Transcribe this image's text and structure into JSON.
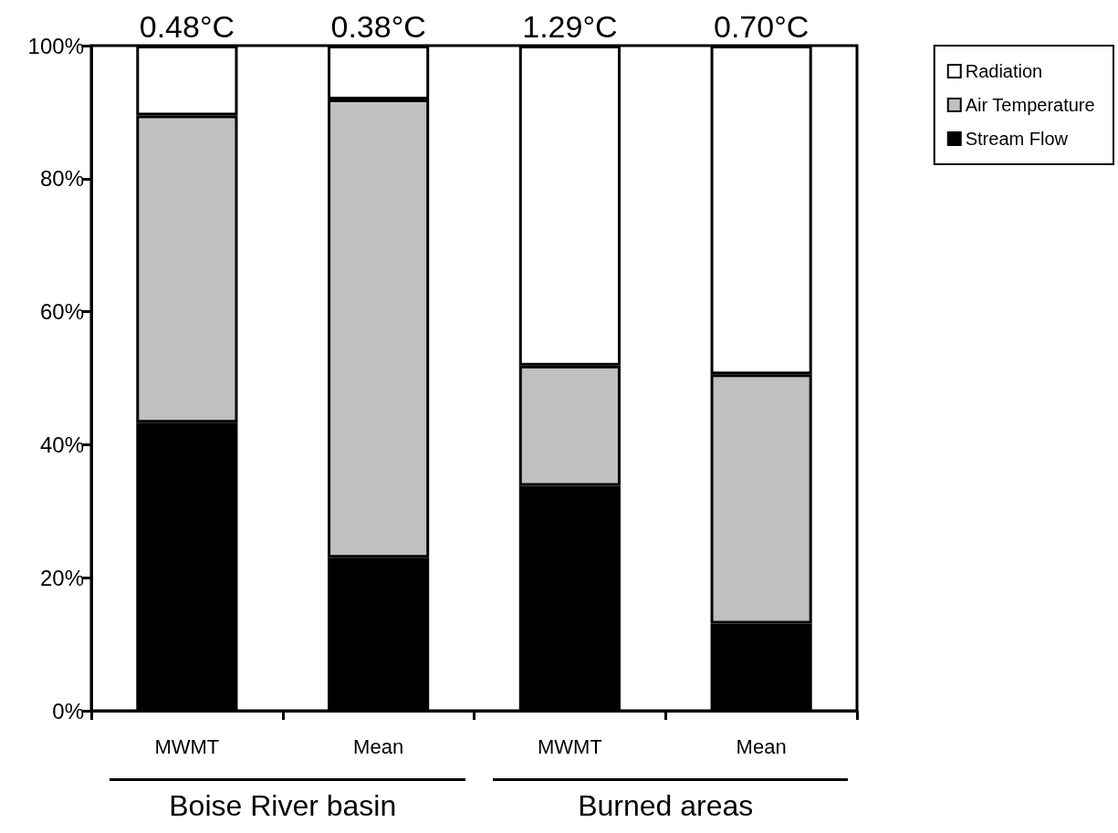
{
  "chart_data": {
    "type": "bar",
    "stacked": true,
    "categories": [
      "MWMT",
      "Mean",
      "MWMT",
      "Mean"
    ],
    "series": [
      {
        "name": "Stream Flow",
        "color": "#000000",
        "values": [
          43.3,
          23.0,
          33.8,
          13.1
        ]
      },
      {
        "name": "Air Temperature",
        "color": "#c0c0c0",
        "values": [
          46.2,
          68.9,
          18.1,
          37.5
        ]
      },
      {
        "name": "Radiation",
        "color": "#ffffff",
        "values": [
          10.5,
          8.1,
          48.1,
          49.4
        ]
      }
    ],
    "ylim": [
      0,
      100
    ],
    "yticks": [
      {
        "value": 0,
        "label": "0%"
      },
      {
        "value": 20,
        "label": "20%"
      },
      {
        "value": 40,
        "label": "40%"
      },
      {
        "value": 60,
        "label": "60%"
      },
      {
        "value": 80,
        "label": "80%"
      },
      {
        "value": 100,
        "label": "100%"
      }
    ],
    "annotations": [
      "0.48°C",
      "0.38°C",
      "1.29°C",
      "0.70°C",
      "Boise River basin",
      "Burned areas"
    ],
    "legend": "top right",
    "grid": false
  }
}
